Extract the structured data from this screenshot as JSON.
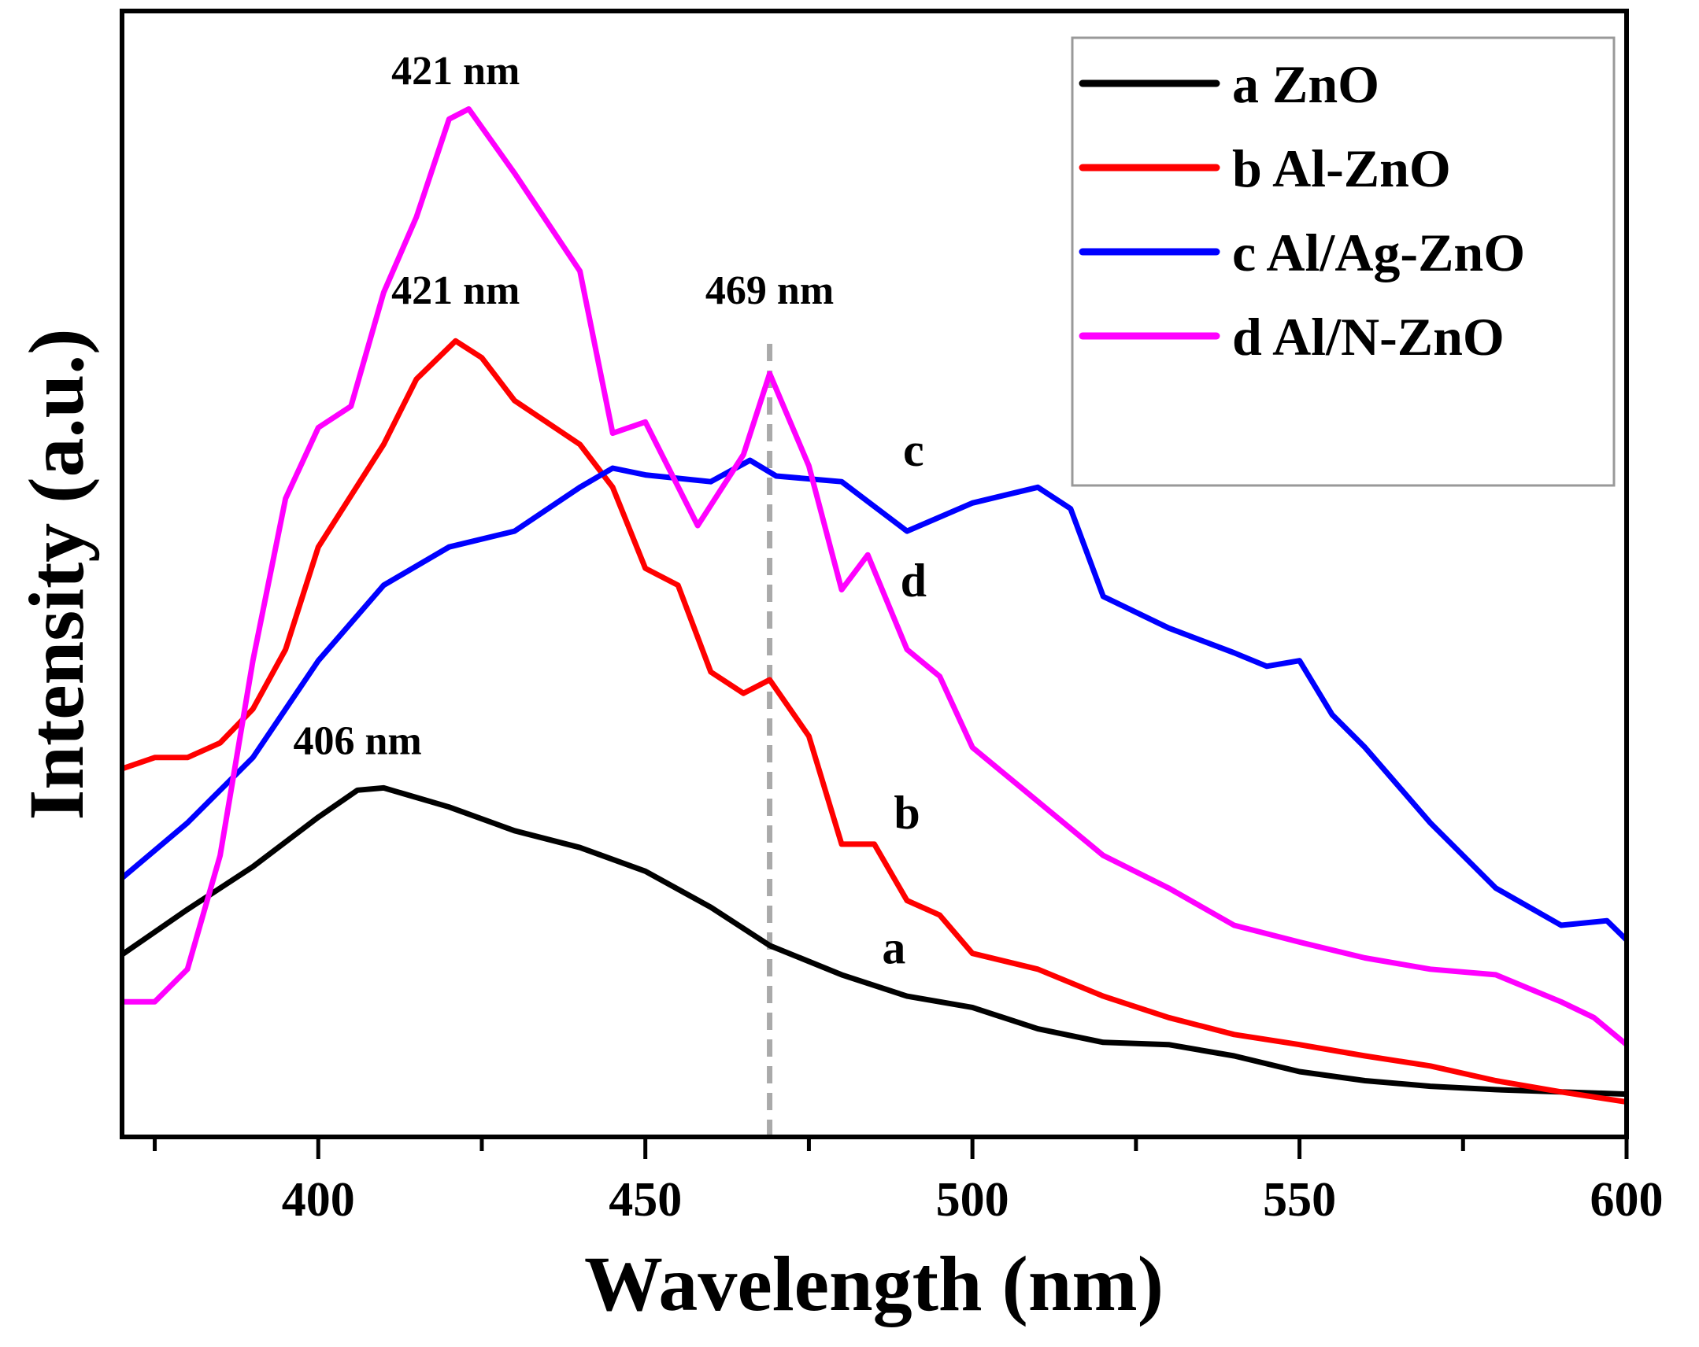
{
  "chart_data": {
    "type": "line",
    "title": "",
    "xlabel": "Wavelength (nm)",
    "ylabel": "Intensity (a.u.)",
    "xlim": [
      370,
      600
    ],
    "ylim": [
      0,
      100
    ],
    "x_ticks": [
      400,
      450,
      500,
      550,
      600
    ],
    "x_minor_ticks": [
      375,
      425,
      475,
      525,
      575
    ],
    "y_ticks": [],
    "grid": false,
    "legend_position": "top-right",
    "series": [
      {
        "name": "a ZnO",
        "label": "a",
        "color": "#000000",
        "x": [
          370,
          380,
          390,
          400,
          406,
          410,
          420,
          430,
          440,
          450,
          460,
          469,
          480,
          490,
          500,
          510,
          520,
          530,
          540,
          550,
          560,
          570,
          580,
          600
        ],
        "y": [
          16.2,
          20.2,
          24,
          28.4,
          30.8,
          31,
          29.3,
          27.2,
          25.7,
          23.6,
          20.4,
          17,
          14.4,
          12.5,
          11.5,
          9.6,
          8.4,
          8.2,
          7.2,
          5.8,
          5,
          4.5,
          4.2,
          3.8
        ]
      },
      {
        "name": "b Al-ZnO",
        "label": "b",
        "color": "#ff0000",
        "x": [
          370,
          375,
          380,
          385,
          390,
          395,
          400,
          410,
          415,
          421,
          425,
          430,
          440,
          445,
          450,
          455,
          460,
          465,
          469,
          475,
          480,
          485,
          490,
          495,
          500,
          510,
          520,
          530,
          540,
          550,
          560,
          570,
          580,
          590,
          600
        ],
        "y": [
          32.7,
          33.7,
          33.7,
          35,
          38,
          43.3,
          52.4,
          61.5,
          67.3,
          70.7,
          69.2,
          65.4,
          61.5,
          57.7,
          50.5,
          49,
          41.3,
          39.4,
          40.6,
          35.6,
          26,
          26,
          21,
          19.7,
          16.3,
          14.9,
          12.5,
          10.6,
          9.1,
          8.2,
          7.2,
          6.3,
          5,
          4,
          3.1
        ]
      },
      {
        "name": "c Al/Ag-ZnO",
        "label": "c",
        "color": "#0000ff",
        "x": [
          370,
          380,
          390,
          400,
          410,
          420,
          430,
          440,
          445,
          450,
          460,
          466,
          470,
          480,
          490,
          500,
          510,
          515,
          520,
          530,
          540,
          545,
          550,
          555,
          560,
          570,
          580,
          590,
          597,
          600
        ],
        "y": [
          23,
          27.9,
          33.7,
          42.3,
          49,
          52.4,
          53.8,
          57.7,
          59.4,
          58.8,
          58.2,
          60.1,
          58.7,
          58.2,
          53.8,
          56.3,
          57.7,
          55.8,
          48,
          45.2,
          43,
          41.8,
          42.3,
          37.5,
          34.6,
          27.9,
          22.1,
          18.8,
          19.2,
          17.5
        ]
      },
      {
        "name": "d Al/N-ZnO",
        "label": "d",
        "color": "#ff00ff",
        "x": [
          370,
          375,
          380,
          385,
          390,
          395,
          400,
          405,
          410,
          415,
          420,
          423,
          430,
          440,
          445,
          450,
          458,
          465,
          469,
          475,
          480,
          484,
          490,
          495,
          500,
          510,
          520,
          530,
          540,
          550,
          560,
          570,
          580,
          590,
          595,
          600
        ],
        "y": [
          12,
          12,
          14.9,
          25,
          42.3,
          56.7,
          63,
          64.9,
          75,
          81.7,
          90.4,
          91.3,
          85.6,
          76.9,
          62.5,
          63.5,
          54.3,
          60.6,
          67.8,
          59.6,
          48.6,
          51.7,
          43.3,
          40.9,
          34.6,
          29.8,
          25,
          22.1,
          18.8,
          17.3,
          15.9,
          14.9,
          14.4,
          12,
          10.6,
          8.2
        ]
      }
    ],
    "annotations": [
      {
        "text": "421 nm",
        "x": 421,
        "y": 93.5
      },
      {
        "text": "421 nm",
        "x": 421,
        "y": 74
      },
      {
        "text": "469 nm",
        "x": 469,
        "y": 74
      },
      {
        "text": "406 nm",
        "x": 406,
        "y": 34
      }
    ],
    "reference_line": {
      "x": 469,
      "style": "dashed",
      "color": "#aaaaaa"
    }
  }
}
